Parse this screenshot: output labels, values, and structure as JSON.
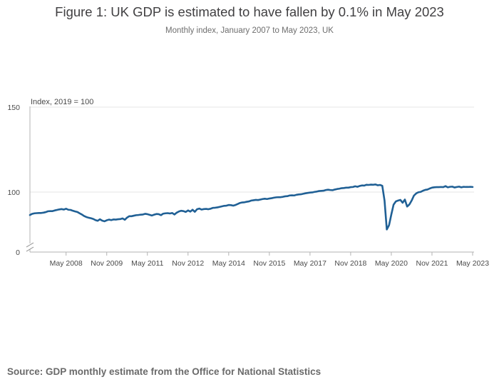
{
  "title": "Figure 1: UK GDP is estimated to have fallen by 0.1% in May 2023",
  "subtitle": "Monthly index, January 2007 to May 2023, UK",
  "source": "Source: GDP monthly estimate from the Office for National Statistics",
  "colors": {
    "line": "#206095",
    "grid": "#e6e6e6",
    "axis": "#b3b3b3",
    "text": "#414042"
  },
  "chart_data": {
    "type": "line",
    "title": "Figure 1: UK GDP is estimated to have fallen by 0.1% in May 2023",
    "subtitle": "Monthly index, January 2007 to May 2023, UK",
    "ylabel": "Index, 2019 = 100",
    "xlabel": "",
    "x_start": "Jan 2007",
    "x_end": "May 2023",
    "ylim": [
      0,
      150
    ],
    "y_axis_break": true,
    "y_ticks": [
      {
        "value": 0,
        "label": "0"
      },
      {
        "value": 100,
        "label": "100"
      },
      {
        "value": 150,
        "label": "150"
      }
    ],
    "x_ticks": [
      {
        "month_index": 16,
        "label": "May 2008"
      },
      {
        "month_index": 34,
        "label": "Nov 2009"
      },
      {
        "month_index": 52,
        "label": "May 2011"
      },
      {
        "month_index": 70,
        "label": "Nov 2012"
      },
      {
        "month_index": 88,
        "label": "May 2014"
      },
      {
        "month_index": 106,
        "label": "Nov 2015"
      },
      {
        "month_index": 124,
        "label": "May 2017"
      },
      {
        "month_index": 142,
        "label": "Nov 2018"
      },
      {
        "month_index": 160,
        "label": "May 2020"
      },
      {
        "month_index": 178,
        "label": "Nov 2021"
      },
      {
        "month_index": 196,
        "label": "May 2023"
      }
    ],
    "series": [
      {
        "name": "GDP monthly index",
        "values": [
          86.5,
          87.2,
          87.5,
          87.6,
          87.7,
          87.7,
          87.9,
          88.2,
          88.7,
          88.8,
          88.8,
          89.2,
          89.5,
          89.8,
          90.0,
          89.7,
          90.2,
          89.6,
          89.5,
          89.0,
          88.6,
          88.3,
          87.5,
          86.8,
          85.9,
          85.3,
          84.9,
          84.6,
          84.2,
          83.5,
          83.1,
          84.0,
          83.2,
          82.8,
          83.4,
          83.8,
          83.5,
          83.9,
          83.8,
          84.0,
          84.1,
          84.5,
          83.7,
          85.0,
          85.8,
          85.8,
          86.1,
          86.4,
          86.5,
          86.7,
          86.8,
          87.2,
          87.0,
          86.6,
          86.2,
          86.7,
          87.1,
          87.0,
          86.4,
          87.3,
          87.5,
          87.6,
          87.4,
          87.7,
          86.8,
          87.9,
          88.6,
          89.0,
          88.8,
          88.3,
          89.2,
          88.5,
          89.6,
          88.4,
          89.9,
          90.3,
          89.7,
          90.0,
          90.1,
          89.9,
          90.2,
          90.7,
          90.8,
          91.0,
          91.3,
          91.6,
          91.9,
          92.0,
          92.4,
          92.3,
          92.0,
          92.4,
          93.0,
          93.6,
          93.9,
          94.0,
          94.3,
          94.5,
          95.0,
          95.2,
          95.4,
          95.3,
          95.6,
          95.9,
          96.1,
          95.9,
          96.2,
          96.4,
          96.7,
          96.9,
          97.0,
          97.0,
          97.2,
          97.5,
          97.6,
          98.0,
          98.1,
          98.0,
          98.4,
          98.6,
          98.7,
          99.0,
          99.3,
          99.5,
          99.7,
          99.8,
          100.1,
          100.3,
          100.6,
          100.7,
          100.8,
          101.2,
          101.4,
          101.2,
          101.1,
          101.5,
          101.8,
          102.0,
          102.3,
          102.4,
          102.6,
          102.6,
          102.9,
          103.0,
          103.4,
          103.1,
          103.6,
          103.9,
          103.8,
          104.3,
          104.2,
          104.4,
          104.3,
          104.5,
          104.0,
          104.2,
          103.7,
          95.0,
          78.0,
          80.5,
          86.8,
          92.6,
          94.5,
          95.0,
          95.4,
          93.7,
          95.6,
          91.5,
          92.7,
          95.0,
          97.9,
          99.2,
          99.9,
          100.1,
          100.8,
          101.3,
          101.5,
          102.1,
          102.6,
          102.8,
          102.9,
          102.9,
          103.0,
          102.9,
          103.5,
          102.8,
          103.1,
          103.2,
          102.7,
          103.0,
          103.2,
          102.8,
          103.1,
          103.0,
          103.0,
          103.1,
          103.0
        ]
      }
    ]
  }
}
